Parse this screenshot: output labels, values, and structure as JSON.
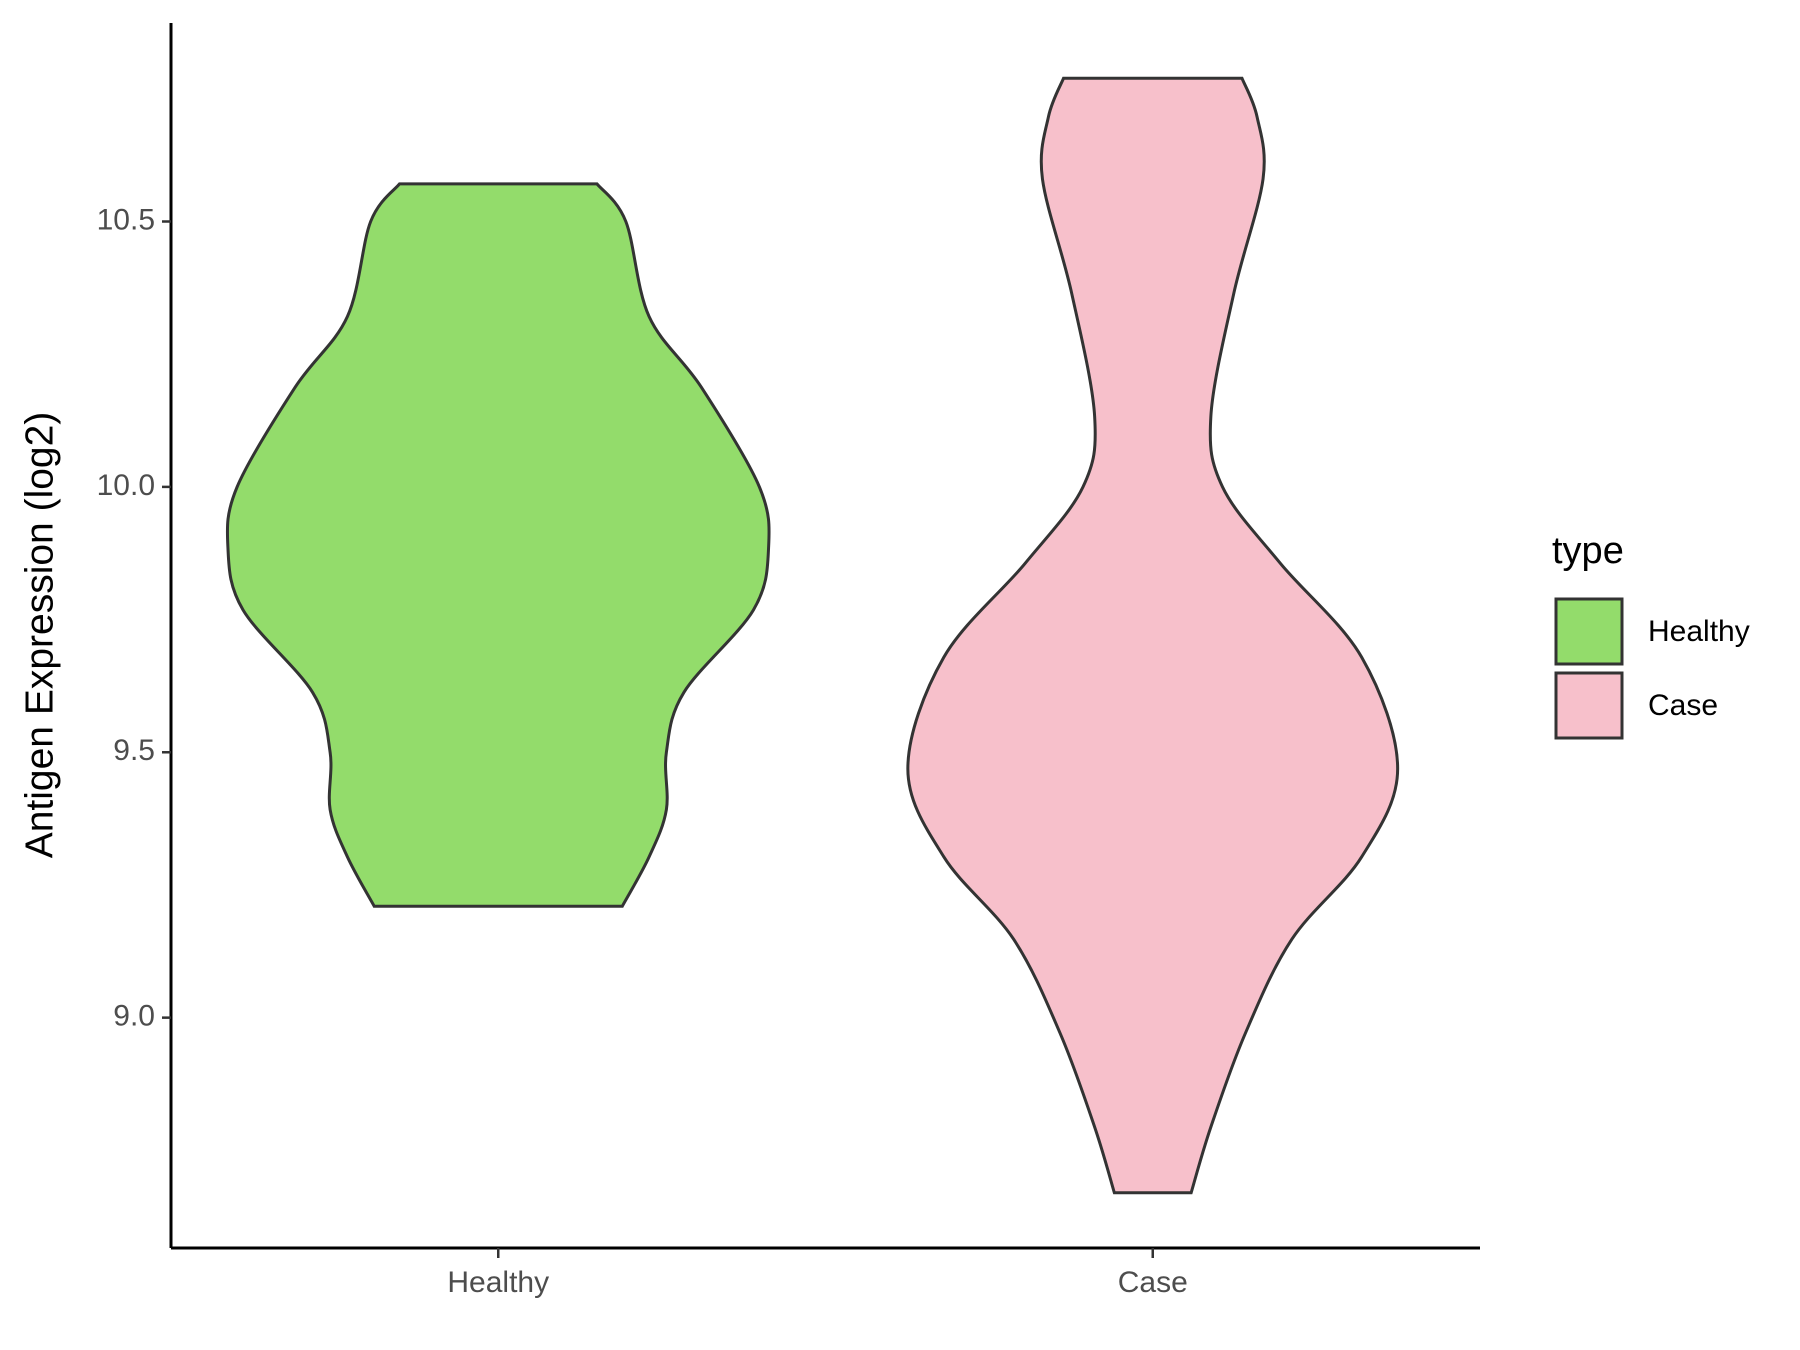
{
  "chart_data": {
    "type": "violin",
    "y_label": "Antigen Expression (log2)",
    "legend_title": "type",
    "categories": [
      "Healthy",
      "Case"
    ],
    "series": [
      {
        "name": "Healthy",
        "color": "#93dc6b",
        "y": [
          10.571,
          10.5,
          10.321,
          10.188,
          10.0,
          9.885,
          9.768,
          9.613,
          9.5,
          9.392,
          9.303,
          9.21
        ],
        "density": [
          0.365,
          0.472,
          0.558,
          0.751,
          0.966,
          1.0,
          0.944,
          0.687,
          0.622,
          0.622,
          0.558,
          0.459
        ]
      },
      {
        "name": "Case",
        "color": "#f7c0cb",
        "y": [
          10.77,
          10.697,
          10.58,
          10.365,
          10.133,
          10.0,
          9.856,
          9.679,
          9.469,
          9.303,
          9.148,
          8.971,
          8.794,
          8.67
        ],
        "density": [
          0.33,
          0.386,
          0.408,
          0.3,
          0.215,
          0.258,
          0.472,
          0.773,
          0.906,
          0.773,
          0.515,
          0.343,
          0.215,
          0.142
        ]
      }
    ],
    "ylim": [
      8.566,
      10.874
    ],
    "yticks": [
      {
        "value": 9,
        "label": "9.0"
      },
      9.5,
      {
        "value": 10,
        "label": "10.0"
      },
      10.5
    ],
    "grid": false
  }
}
